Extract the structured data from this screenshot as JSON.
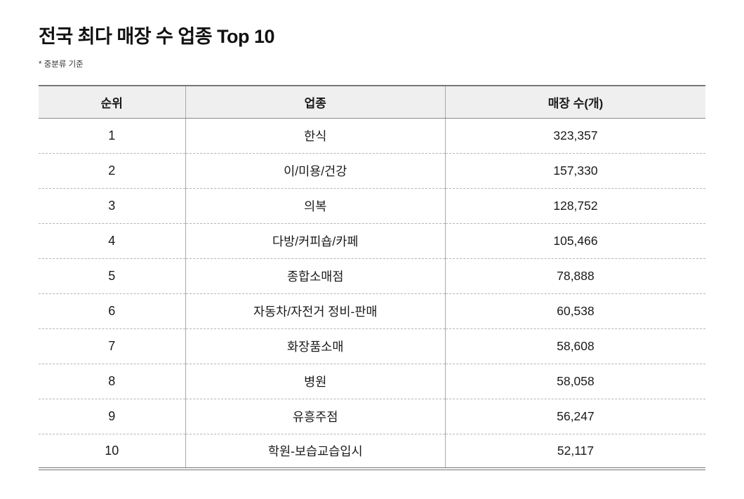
{
  "page": {
    "title": "전국 최다 매장 수 업종 Top 10",
    "note": "* 중분류 기준"
  },
  "chart_data": {
    "type": "table",
    "title": "전국 최다 매장 수 업종 Top 10",
    "subtitle": "* 중분류 기준",
    "columns": [
      "순위",
      "업종",
      "매장 수(개)"
    ],
    "rows": [
      [
        "1",
        "한식",
        "323,357"
      ],
      [
        "2",
        "이/미용/건강",
        "157,330"
      ],
      [
        "3",
        "의복",
        "128,752"
      ],
      [
        "4",
        "다방/커피숍/카페",
        "105,466"
      ],
      [
        "5",
        "종합소매점",
        "78,888"
      ],
      [
        "6",
        "자동차/자전거 정비-판매",
        "60,538"
      ],
      [
        "7",
        "화장품소매",
        "58,608"
      ],
      [
        "8",
        "병원",
        "58,058"
      ],
      [
        "9",
        "유흥주점",
        "56,247"
      ],
      [
        "10",
        "학원-보습교습입시",
        "52,117"
      ]
    ]
  },
  "colors": {
    "header_bg": "#efefef",
    "table_border": "#777777",
    "column_divider": "#aaaaaa",
    "row_divider": "#b5b5b5",
    "text": "#1a1a1a"
  }
}
